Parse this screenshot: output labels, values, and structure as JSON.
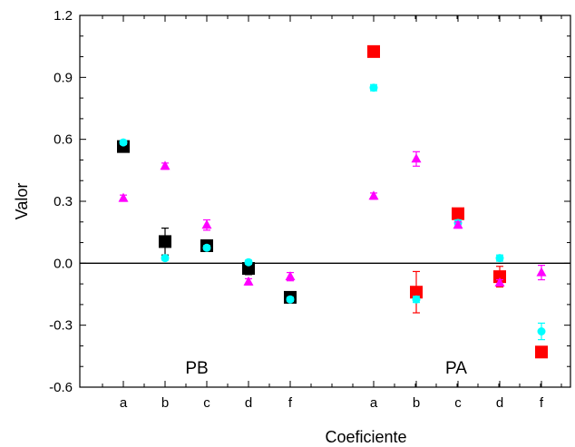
{
  "chart_data": {
    "type": "scatter",
    "xlabel": "Coeficiente",
    "ylabel": "Valor",
    "ylim": [
      -0.6,
      1.2
    ],
    "yticks": [
      -0.6,
      -0.3,
      0.0,
      0.3,
      0.6,
      0.9,
      1.2
    ],
    "ytick_labels": [
      "-0.6",
      "-0.3",
      "0.0",
      "0.3",
      "0.6",
      "0.9",
      "1.2"
    ],
    "categories": [
      "a",
      "b",
      "c",
      "d",
      "f",
      "a",
      "b",
      "c",
      "d",
      "f"
    ],
    "groups": [
      {
        "label": "PB",
        "categories": [
          "a",
          "b",
          "c",
          "d",
          "f"
        ]
      },
      {
        "label": "PA",
        "categories": [
          "a",
          "b",
          "c",
          "d",
          "f"
        ]
      }
    ],
    "reference_line": 0.0,
    "grid": false,
    "series": [
      {
        "marker": "square",
        "color": "#000000",
        "group": "PB",
        "values": [
          0.565,
          0.105,
          0.085,
          -0.025,
          -0.165
        ],
        "errors": [
          0.02,
          0.065,
          0.02,
          0.03,
          0.02
        ]
      },
      {
        "marker": "square",
        "color": "#ff0000",
        "group": "PA",
        "values": [
          1.025,
          -0.14,
          0.24,
          -0.065,
          -0.43
        ],
        "errors": [
          0.02,
          0.1,
          0.02,
          0.05,
          0.015
        ]
      },
      {
        "marker": "circle",
        "color": "#00ffff",
        "group": "PB",
        "values": [
          0.585,
          0.025,
          0.075,
          0.005,
          -0.175
        ],
        "errors": [
          0.01,
          0.01,
          0.01,
          0.01,
          0.01
        ]
      },
      {
        "marker": "circle",
        "color": "#00ffff",
        "group": "PA",
        "values": [
          0.85,
          -0.175,
          0.195,
          0.025,
          -0.33
        ],
        "errors": [
          0.015,
          0.015,
          0.015,
          0.015,
          0.04
        ]
      },
      {
        "marker": "triangle",
        "color": "#ff00ff",
        "group": "PB",
        "values": [
          0.315,
          0.47,
          0.185,
          -0.09,
          -0.065
        ],
        "errors": [
          0.015,
          0.015,
          0.025,
          0.015,
          0.02
        ]
      },
      {
        "marker": "triangle",
        "color": "#ff00ff",
        "group": "PA",
        "values": [
          0.325,
          0.505,
          0.185,
          -0.095,
          -0.045
        ],
        "errors": [
          0.015,
          0.035,
          0.015,
          0.015,
          0.035
        ]
      }
    ]
  }
}
